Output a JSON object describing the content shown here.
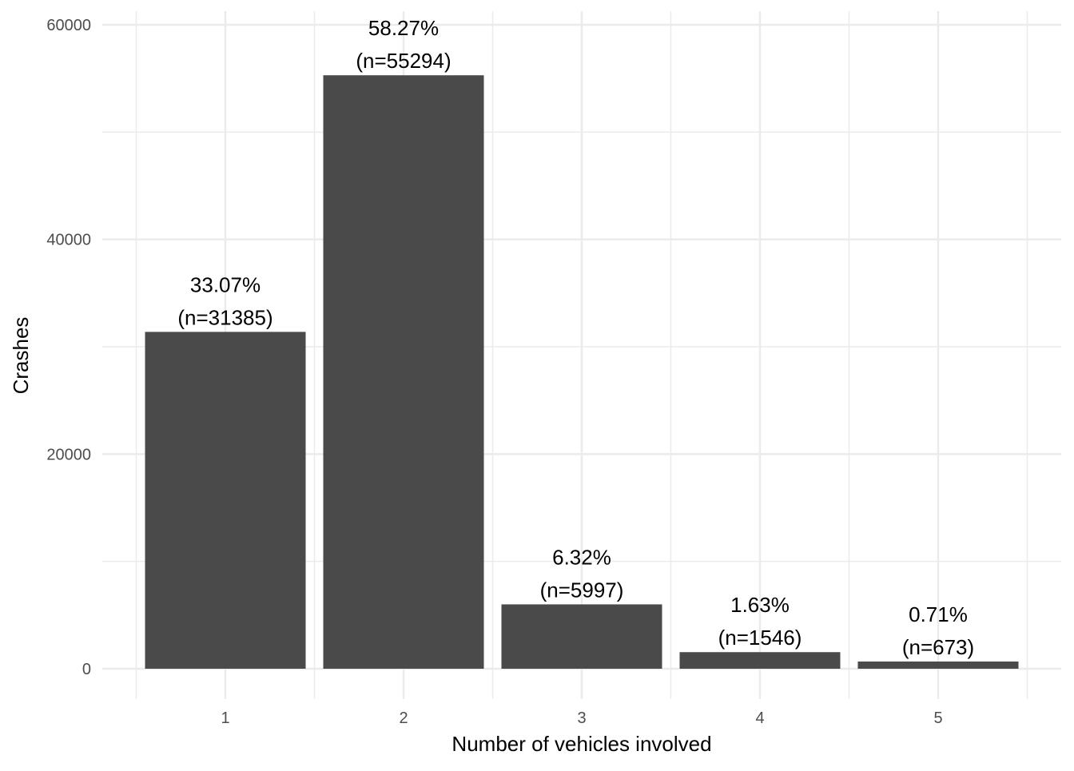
{
  "chart_data": {
    "type": "bar",
    "title": "",
    "xlabel": "Number of vehicles involved",
    "ylabel": "Crashes",
    "categories": [
      "1",
      "2",
      "3",
      "4",
      "5"
    ],
    "values": [
      31385,
      55294,
      5997,
      1546,
      673
    ],
    "data_labels": [
      [
        "33.07%",
        "(n=31385)"
      ],
      [
        "58.27%",
        "(n=55294)"
      ],
      [
        "6.32%",
        "(n=5997)"
      ],
      [
        "1.63%",
        "(n=1546)"
      ],
      [
        "0.71%",
        "(n=673)"
      ]
    ],
    "ylim": [
      0,
      60000
    ],
    "y_ticks": [
      0,
      20000,
      40000,
      60000
    ],
    "y_tick_labels": [
      "0",
      "20000",
      "40000",
      "60000"
    ],
    "grid": true,
    "legend": false,
    "bar_color": "#4a4a4a",
    "grid_color": "#ebebeb"
  }
}
